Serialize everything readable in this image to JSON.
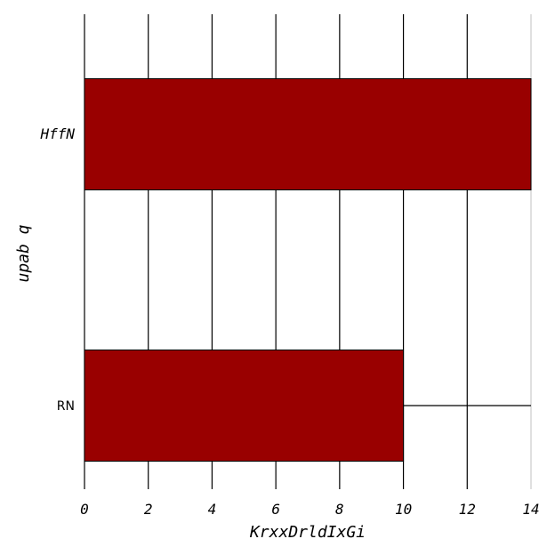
{
  "chart_data": {
    "type": "bar",
    "orientation": "horizontal",
    "categories": [
      "HffN",
      "RN"
    ],
    "values": [
      14,
      10
    ],
    "xlabel": "KrxxDrldIxGi",
    "ylabel": "upab q",
    "xlim": [
      0,
      14
    ],
    "xticks": [
      "0",
      "2",
      "4",
      "6",
      "8",
      "10",
      "12",
      "14"
    ],
    "grid": true,
    "bar_color": "#990000",
    "error_bars": [
      {
        "category": "RN",
        "from": 10,
        "to": 14
      }
    ]
  }
}
